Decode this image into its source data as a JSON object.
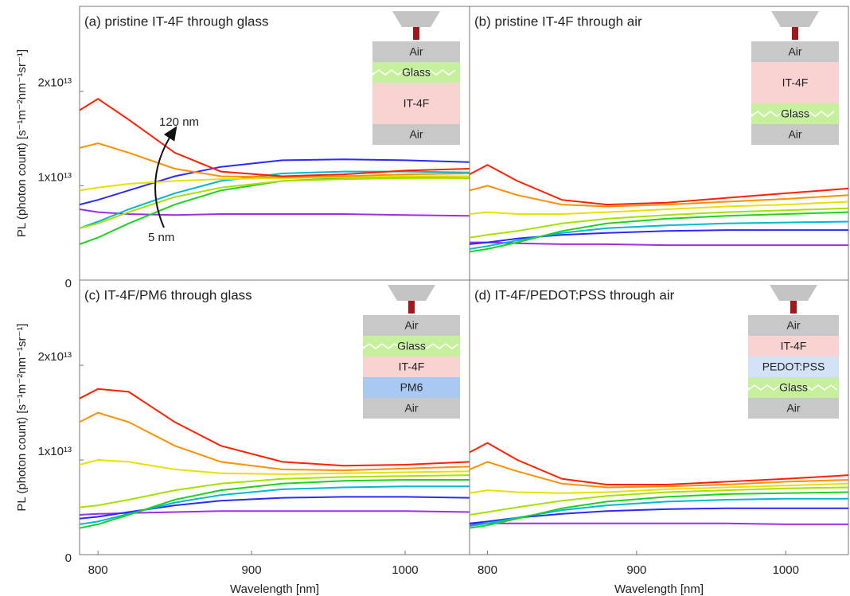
{
  "chart_data": [
    {
      "type": "line",
      "title": "(a) pristine IT-4F through glass",
      "x": [
        788,
        800,
        820,
        850,
        880,
        920,
        960,
        1000,
        1042
      ],
      "xlim": [
        788,
        1042
      ],
      "ylim": [
        0,
        29000000000000.0
      ],
      "yticks": [
        {
          "value": 0,
          "label": "0"
        },
        {
          "value": 10000000000000.0,
          "label": "1x10¹³"
        },
        {
          "value": 20000000000000.0,
          "label": "2x10¹³"
        }
      ],
      "ylabel": "PL (photon count) [s⁻¹m⁻²nm⁻¹sr⁻¹]",
      "annotations": [
        "120 nm",
        "5 nm"
      ],
      "inset_layers": [
        {
          "label": "Air",
          "color": "#c8c8c8"
        },
        {
          "label": "Glass",
          "color": "#c6f09c"
        },
        {
          "label": "IT-4F",
          "color": "#f9d2d2"
        },
        {
          "label": "Air",
          "color": "#c8c8c8"
        }
      ],
      "series": [
        {
          "color": "#9a30e0",
          "values": [
            7500000000000.0,
            7200000000000.0,
            7000000000000.0,
            6900000000000.0,
            7000000000000.0,
            7000000000000.0,
            7000000000000.0,
            6900000000000.0,
            6800000000000.0
          ]
        },
        {
          "color": "#2a2aff",
          "values": [
            8000000000000.0,
            8500000000000.0,
            9500000000000.0,
            11000000000000.0,
            12000000000000.0,
            12700000000000.0,
            12800000000000.0,
            12700000000000.0,
            12500000000000.0
          ]
        },
        {
          "color": "#00b8d0",
          "values": [
            5500000000000.0,
            6200000000000.0,
            7500000000000.0,
            9200000000000.0,
            10500000000000.0,
            11300000000000.0,
            11500000000000.0,
            11500000000000.0,
            11400000000000.0
          ]
        },
        {
          "color": "#20d020",
          "values": [
            3800000000000.0,
            4500000000000.0,
            6000000000000.0,
            8000000000000.0,
            9500000000000.0,
            10500000000000.0,
            10800000000000.0,
            10900000000000.0,
            10800000000000.0
          ]
        },
        {
          "color": "#a8e000",
          "values": [
            5500000000000.0,
            6000000000000.0,
            7200000000000.0,
            8800000000000.0,
            9800000000000.0,
            10500000000000.0,
            10700000000000.0,
            10800000000000.0,
            10800000000000.0
          ]
        },
        {
          "color": "#e8e000",
          "values": [
            9500000000000.0,
            9800000000000.0,
            10200000000000.0,
            10500000000000.0,
            10700000000000.0,
            10800000000000.0,
            10900000000000.0,
            11000000000000.0,
            11000000000000.0
          ]
        },
        {
          "color": "#ff9000",
          "values": [
            14000000000000.0,
            14500000000000.0,
            13500000000000.0,
            11800000000000.0,
            11000000000000.0,
            10900000000000.0,
            11000000000000.0,
            11200000000000.0,
            11300000000000.0
          ]
        },
        {
          "color": "#ff2000",
          "values": [
            18000000000000.0,
            19200000000000.0,
            17000000000000.0,
            13500000000000.0,
            11500000000000.0,
            11000000000000.0,
            11200000000000.0,
            11600000000000.0,
            11800000000000.0
          ]
        }
      ]
    },
    {
      "type": "line",
      "title": "(b) pristine IT-4F through air",
      "x": [
        788,
        800,
        820,
        850,
        880,
        920,
        960,
        1000,
        1042
      ],
      "xlim": [
        788,
        1042
      ],
      "ylim": [
        0,
        29000000000000.0
      ],
      "inset_layers": [
        {
          "label": "Air",
          "color": "#c8c8c8"
        },
        {
          "label": "IT-4F",
          "color": "#f9d2d2"
        },
        {
          "label": "Glass",
          "color": "#c6f09c"
        },
        {
          "label": "Air",
          "color": "#c8c8c8"
        }
      ],
      "series": [
        {
          "color": "#9a30e0",
          "values": [
            4000000000000.0,
            4000000000000.0,
            3900000000000.0,
            3800000000000.0,
            3800000000000.0,
            3700000000000.0,
            3700000000000.0,
            3700000000000.0,
            3700000000000.0
          ]
        },
        {
          "color": "#2a2aff",
          "values": [
            3800000000000.0,
            4000000000000.0,
            4400000000000.0,
            4800000000000.0,
            5000000000000.0,
            5200000000000.0,
            5300000000000.0,
            5300000000000.0,
            5300000000000.0
          ]
        },
        {
          "color": "#00b8d0",
          "values": [
            3300000000000.0,
            3600000000000.0,
            4200000000000.0,
            5000000000000.0,
            5500000000000.0,
            5800000000000.0,
            6000000000000.0,
            6100000000000.0,
            6200000000000.0
          ]
        },
        {
          "color": "#20d020",
          "values": [
            3000000000000.0,
            3300000000000.0,
            4000000000000.0,
            5200000000000.0,
            6000000000000.0,
            6500000000000.0,
            6800000000000.0,
            7000000000000.0,
            7200000000000.0
          ]
        },
        {
          "color": "#a8e000",
          "values": [
            4500000000000.0,
            4800000000000.0,
            5200000000000.0,
            6000000000000.0,
            6500000000000.0,
            6900000000000.0,
            7200000000000.0,
            7400000000000.0,
            7600000000000.0
          ]
        },
        {
          "color": "#e8e000",
          "values": [
            7000000000000.0,
            7200000000000.0,
            7000000000000.0,
            7000000000000.0,
            7200000000000.0,
            7500000000000.0,
            7800000000000.0,
            8000000000000.0,
            8300000000000.0
          ]
        },
        {
          "color": "#ff9000",
          "values": [
            9500000000000.0,
            10000000000000.0,
            9000000000000.0,
            8000000000000.0,
            7800000000000.0,
            8000000000000.0,
            8300000000000.0,
            8600000000000.0,
            9000000000000.0
          ]
        },
        {
          "color": "#ff2000",
          "values": [
            11200000000000.0,
            12200000000000.0,
            10500000000000.0,
            8500000000000.0,
            8000000000000.0,
            8200000000000.0,
            8700000000000.0,
            9200000000000.0,
            9700000000000.0
          ]
        }
      ]
    },
    {
      "type": "line",
      "title": "(c) IT-4F/PM6 through glass",
      "x": [
        788,
        800,
        820,
        850,
        880,
        920,
        960,
        1000,
        1042
      ],
      "xlim": [
        788,
        1042
      ],
      "ylim": [
        0,
        29000000000000.0
      ],
      "xticks": [
        800,
        900,
        1000
      ],
      "yticks": [
        {
          "value": 0,
          "label": "0"
        },
        {
          "value": 10000000000000.0,
          "label": "1x10¹³"
        },
        {
          "value": 20000000000000.0,
          "label": "2x10¹³"
        }
      ],
      "xlabel": "Wavelength [nm]",
      "ylabel": "PL (photon count) [s⁻¹m⁻²nm⁻¹sr⁻¹]",
      "inset_layers": [
        {
          "label": "Air",
          "color": "#c8c8c8"
        },
        {
          "label": "Glass",
          "color": "#c6f09c"
        },
        {
          "label": "IT-4F",
          "color": "#f9d2d2"
        },
        {
          "label": "PM6",
          "color": "#a9c9f2"
        },
        {
          "label": "Air",
          "color": "#c8c8c8"
        }
      ],
      "series": [
        {
          "color": "#9a30e0",
          "values": [
            4200000000000.0,
            4300000000000.0,
            4400000000000.0,
            4500000000000.0,
            4600000000000.0,
            4600000000000.0,
            4600000000000.0,
            4600000000000.0,
            4500000000000.0
          ]
        },
        {
          "color": "#2a2aff",
          "values": [
            3800000000000.0,
            4000000000000.0,
            4500000000000.0,
            5200000000000.0,
            5700000000000.0,
            6000000000000.0,
            6100000000000.0,
            6100000000000.0,
            6000000000000.0
          ]
        },
        {
          "color": "#00b8d0",
          "values": [
            3200000000000.0,
            3500000000000.0,
            4300000000000.0,
            5500000000000.0,
            6300000000000.0,
            6900000000000.0,
            7100000000000.0,
            7200000000000.0,
            7200000000000.0
          ]
        },
        {
          "color": "#20d020",
          "values": [
            2800000000000.0,
            3200000000000.0,
            4200000000000.0,
            5800000000000.0,
            6800000000000.0,
            7500000000000.0,
            7800000000000.0,
            7900000000000.0,
            7900000000000.0
          ]
        },
        {
          "color": "#a8e000",
          "values": [
            5000000000000.0,
            5200000000000.0,
            5800000000000.0,
            6800000000000.0,
            7500000000000.0,
            8000000000000.0,
            8200000000000.0,
            8300000000000.0,
            8400000000000.0
          ]
        },
        {
          "color": "#e8e000",
          "values": [
            9500000000000.0,
            10000000000000.0,
            9800000000000.0,
            9000000000000.0,
            8600000000000.0,
            8500000000000.0,
            8600000000000.0,
            8700000000000.0,
            8800000000000.0
          ]
        },
        {
          "color": "#ff9000",
          "values": [
            14000000000000.0,
            15000000000000.0,
            14000000000000.0,
            11500000000000.0,
            9800000000000.0,
            9000000000000.0,
            8900000000000.0,
            9100000000000.0,
            9300000000000.0
          ]
        },
        {
          "color": "#ff2000",
          "values": [
            16500000000000.0,
            17500000000000.0,
            17200000000000.0,
            14000000000000.0,
            11500000000000.0,
            9800000000000.0,
            9400000000000.0,
            9500000000000.0,
            9800000000000.0
          ]
        }
      ]
    },
    {
      "type": "line",
      "title": "(d) IT-4F/PEDOT:PSS through air",
      "x": [
        788,
        800,
        820,
        850,
        880,
        920,
        960,
        1000,
        1042
      ],
      "xlim": [
        788,
        1042
      ],
      "ylim": [
        0,
        29000000000000.0
      ],
      "xticks": [
        800,
        900,
        1000
      ],
      "xlabel": "Wavelength [nm]",
      "inset_layers": [
        {
          "label": "Air",
          "color": "#c8c8c8"
        },
        {
          "label": "IT-4F",
          "color": "#f9d2d2"
        },
        {
          "label": "PEDOT:PSS",
          "color": "#d4e2f8"
        },
        {
          "label": "Glass",
          "color": "#c6f09c"
        },
        {
          "label": "Air",
          "color": "#c8c8c8"
        }
      ],
      "series": [
        {
          "color": "#9a30e0",
          "values": [
            3200000000000.0,
            3300000000000.0,
            3300000000000.0,
            3300000000000.0,
            3300000000000.0,
            3300000000000.0,
            3300000000000.0,
            3200000000000.0,
            3200000000000.0
          ]
        },
        {
          "color": "#2a2aff",
          "values": [
            3300000000000.0,
            3500000000000.0,
            3900000000000.0,
            4300000000000.0,
            4600000000000.0,
            4800000000000.0,
            4900000000000.0,
            4900000000000.0,
            4900000000000.0
          ]
        },
        {
          "color": "#00b8d0",
          "values": [
            3000000000000.0,
            3300000000000.0,
            3900000000000.0,
            4700000000000.0,
            5200000000000.0,
            5600000000000.0,
            5800000000000.0,
            5900000000000.0,
            5900000000000.0
          ]
        },
        {
          "color": "#20d020",
          "values": [
            2800000000000.0,
            3100000000000.0,
            3800000000000.0,
            4900000000000.0,
            5600000000000.0,
            6100000000000.0,
            6400000000000.0,
            6500000000000.0,
            6600000000000.0
          ]
        },
        {
          "color": "#a8e000",
          "values": [
            4200000000000.0,
            4500000000000.0,
            5000000000000.0,
            5700000000000.0,
            6200000000000.0,
            6600000000000.0,
            6800000000000.0,
            7000000000000.0,
            7100000000000.0
          ]
        },
        {
          "color": "#e8e000",
          "values": [
            6500000000000.0,
            6800000000000.0,
            6600000000000.0,
            6500000000000.0,
            6600000000000.0,
            6900000000000.0,
            7100000000000.0,
            7300000000000.0,
            7500000000000.0
          ]
        },
        {
          "color": "#ff9000",
          "values": [
            9000000000000.0,
            9800000000000.0,
            8800000000000.0,
            7500000000000.0,
            7100000000000.0,
            7200000000000.0,
            7400000000000.0,
            7700000000000.0,
            7900000000000.0
          ]
        },
        {
          "color": "#ff2000",
          "values": [
            10800000000000.0,
            11800000000000.0,
            10000000000000.0,
            8000000000000.0,
            7400000000000.0,
            7400000000000.0,
            7700000000000.0,
            8000000000000.0,
            8400000000000.0
          ]
        }
      ]
    }
  ]
}
